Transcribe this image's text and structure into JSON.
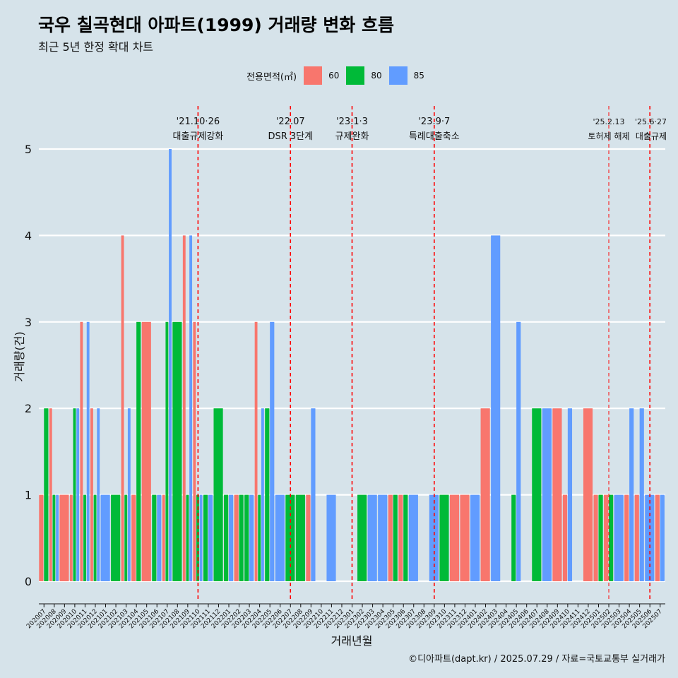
{
  "title": "국우 칠곡현대 아파트(1999) 거래량 변화 흐름",
  "subtitle": "최근 5년 한정 확대 차트",
  "caption": "©디아파트(dapt.kr) / 2025.07.29 / 자료=국토교통부 실거래가",
  "legend": {
    "title": "전용면적(㎡)",
    "items": [
      {
        "label": "60",
        "color": "#f8766d"
      },
      {
        "label": "80",
        "color": "#00ba38"
      },
      {
        "label": "85",
        "color": "#619cff"
      }
    ]
  },
  "chart_data": {
    "type": "bar",
    "xlabel": "거래년월",
    "ylabel": "거래량(건)",
    "ylim": [
      0,
      5
    ],
    "yticks": [
      0,
      1,
      2,
      3,
      4,
      5
    ],
    "categories": [
      "202007",
      "202008",
      "202009",
      "202010",
      "202011",
      "202012",
      "202101",
      "202102",
      "202103",
      "202104",
      "202105",
      "202106",
      "202107",
      "202108",
      "202109",
      "202110",
      "202111",
      "202112",
      "202201",
      "202202",
      "202203",
      "202204",
      "202205",
      "202206",
      "202207",
      "202208",
      "202209",
      "202210",
      "202211",
      "202212",
      "202301",
      "202302",
      "202303",
      "202304",
      "202305",
      "202306",
      "202307",
      "202308",
      "202309",
      "202310",
      "202311",
      "202312",
      "202401",
      "202402",
      "202403",
      "202404",
      "202405",
      "202406",
      "202407",
      "202408",
      "202409",
      "202410",
      "202411",
      "202412",
      "202501",
      "202502",
      "202503",
      "202504",
      "202505",
      "202506",
      "202507"
    ],
    "series": [
      {
        "name": "60",
        "values": [
          1,
          2,
          1,
          1,
          3,
          2,
          0,
          0,
          4,
          1,
          3,
          0,
          1,
          0,
          4,
          3,
          0,
          0,
          0,
          1,
          0,
          3,
          0,
          0,
          0,
          0,
          1,
          0,
          0,
          0,
          0,
          0,
          0,
          0,
          1,
          1,
          0,
          0,
          0,
          0,
          1,
          1,
          0,
          2,
          0,
          0,
          0,
          0,
          0,
          0,
          2,
          1,
          0,
          2,
          1,
          1,
          0,
          1,
          1,
          0,
          1
        ]
      },
      {
        "name": "80",
        "values": [
          2,
          1,
          0,
          2,
          1,
          1,
          0,
          1,
          1,
          3,
          0,
          1,
          3,
          3,
          1,
          1,
          1,
          2,
          1,
          1,
          1,
          1,
          2,
          0,
          1,
          1,
          0,
          0,
          0,
          0,
          0,
          1,
          0,
          0,
          1,
          1,
          0,
          0,
          0,
          1,
          0,
          0,
          0,
          0,
          0,
          0,
          1,
          0,
          2,
          0,
          0,
          0,
          0,
          0,
          1,
          1,
          0,
          0,
          0,
          0,
          0
        ]
      },
      {
        "name": "85",
        "values": [
          0,
          1,
          0,
          2,
          3,
          2,
          1,
          0,
          2,
          0,
          0,
          1,
          5,
          0,
          4,
          1,
          1,
          0,
          1,
          0,
          1,
          2,
          3,
          1,
          0,
          0,
          2,
          0,
          1,
          0,
          0,
          0,
          1,
          1,
          0,
          0,
          1,
          0,
          1,
          0,
          0,
          0,
          1,
          0,
          4,
          0,
          3,
          0,
          0,
          2,
          0,
          2,
          0,
          0,
          0,
          0,
          1,
          2,
          2,
          1,
          1
        ]
      }
    ],
    "annotations": [
      {
        "month": "202110",
        "date": "'21.10·26",
        "label": "대출규제강화"
      },
      {
        "month": "202207",
        "date": "'22.07",
        "label": "DSR 3단계"
      },
      {
        "month": "202301",
        "date": "'23.1·3",
        "label": "규제완화"
      },
      {
        "month": "202309",
        "date": "'23.9·7",
        "label": "특례대출축소"
      },
      {
        "month": "202502",
        "date": "'25.2.13",
        "label": "토허제 해제"
      },
      {
        "month": "202506",
        "date": "'25.6·27",
        "label": "대출규제"
      }
    ],
    "grid": true,
    "legend_position": "top"
  }
}
